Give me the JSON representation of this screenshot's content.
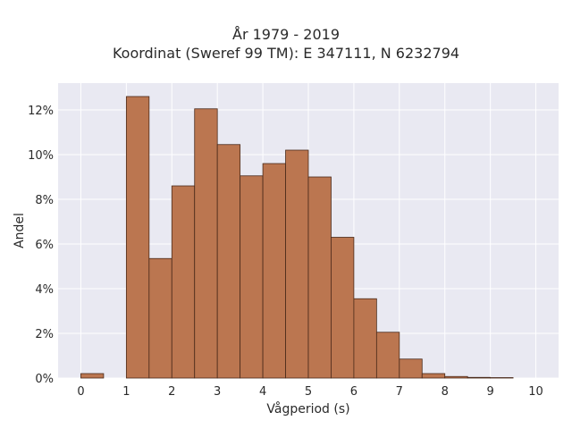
{
  "chart_data": {
    "type": "bar",
    "title": "År 1979 - 2019",
    "subtitle": "Koordinat (Sweref 99 TM): E 347111, N 6232794",
    "xlabel": "Vågperiod (s)",
    "ylabel": "Andel",
    "xlim": [
      -0.5,
      10.5
    ],
    "ylim": [
      0,
      13.2
    ],
    "xticks": [
      0,
      1,
      2,
      3,
      4,
      5,
      6,
      7,
      8,
      9,
      10
    ],
    "yticks": [
      0,
      2,
      4,
      6,
      8,
      10,
      12
    ],
    "ytick_format": "percent",
    "grid": true,
    "bin_width": 0.5,
    "bins": [
      {
        "x0": 0.0,
        "value": 0.2
      },
      {
        "x0": 0.5,
        "value": 0.0
      },
      {
        "x0": 1.0,
        "value": 12.6
      },
      {
        "x0": 1.5,
        "value": 5.35
      },
      {
        "x0": 2.0,
        "value": 8.6
      },
      {
        "x0": 2.5,
        "value": 12.05
      },
      {
        "x0": 3.0,
        "value": 10.45
      },
      {
        "x0": 3.5,
        "value": 9.05
      },
      {
        "x0": 4.0,
        "value": 9.6
      },
      {
        "x0": 4.5,
        "value": 10.2
      },
      {
        "x0": 5.0,
        "value": 9.0
      },
      {
        "x0": 5.5,
        "value": 6.3
      },
      {
        "x0": 6.0,
        "value": 3.55
      },
      {
        "x0": 6.5,
        "value": 2.05
      },
      {
        "x0": 7.0,
        "value": 0.85
      },
      {
        "x0": 7.5,
        "value": 0.2
      },
      {
        "x0": 8.0,
        "value": 0.07
      },
      {
        "x0": 8.5,
        "value": 0.03
      },
      {
        "x0": 9.0,
        "value": 0.02
      }
    ],
    "colors": {
      "bar_fill": "#bb7650",
      "bar_stroke": "#4a2a1a",
      "plot_bg": "#e9e9f2",
      "grid": "#ffffff"
    }
  }
}
